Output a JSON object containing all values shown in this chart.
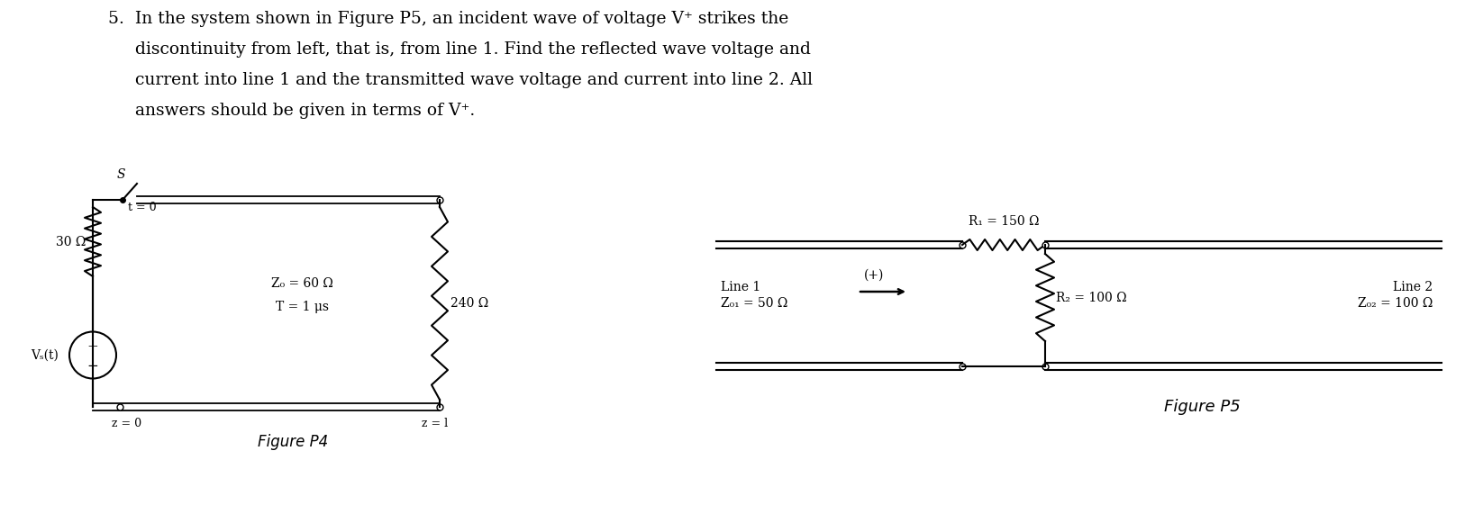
{
  "background_color": "#ffffff",
  "title_line1": "5.  In the system shown in Figure P5, an incident wave of voltage V⁺ strikes the",
  "title_line2": "     discontinuity from left, that is, from line 1. Find the reflected wave voltage and",
  "title_line3": "     current into line 1 and the transmitted wave voltage and current into line 2. All",
  "title_line4": "     answers should be given in terms of V⁺.",
  "title_fontsize": 13.5,
  "fig4": {
    "label_30ohm": "30 Ω",
    "label_Z0": "Z₀ = 60 Ω",
    "label_T": "T = 1 μs",
    "label_240ohm": "240 Ω",
    "label_Vg": "Vₛ(t)",
    "label_t0": "t = 0",
    "label_S": "S",
    "label_z0": "z = 0",
    "label_zl": "z = l",
    "label_figP4": "Figure P4"
  },
  "fig5": {
    "label_R1": "R₁ = 150 Ω",
    "label_R2": "R₂ = 100 Ω",
    "label_Line1": "Line 1",
    "label_Z01": "Z₀₁ = 50 Ω",
    "label_Line2": "Line 2",
    "label_Z02": "Z₀₂ = 100 Ω",
    "label_plus": "(+)",
    "label_figP5": "Figure P5"
  }
}
